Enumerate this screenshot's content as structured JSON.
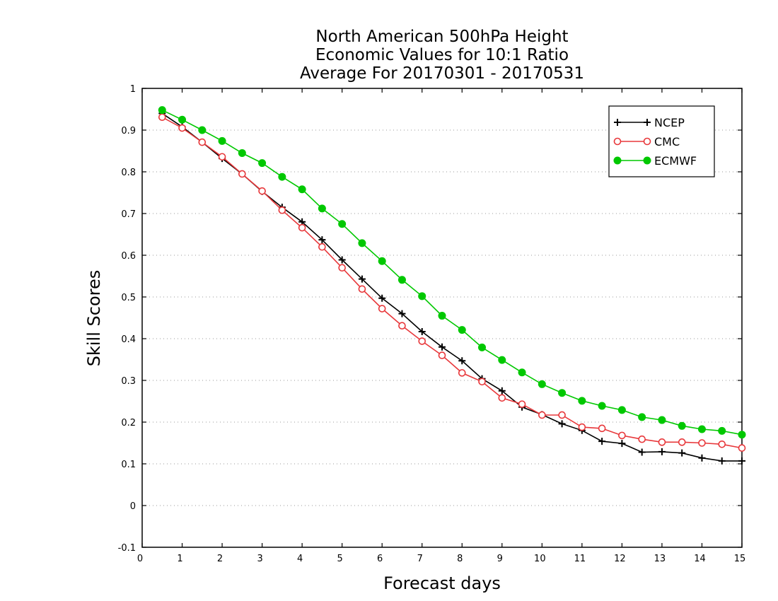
{
  "chart_data": {
    "type": "line",
    "title": [
      "North American 500hPa Height",
      "Economic Values for 10:1 Ratio",
      "Average For 20170301 - 20170531"
    ],
    "xlabel": "Forecast days",
    "ylabel": "Skill Scores",
    "xlim": [
      0,
      15
    ],
    "ylim": [
      -0.1,
      1
    ],
    "xticks": [
      0,
      1,
      2,
      3,
      4,
      5,
      6,
      7,
      8,
      9,
      10,
      11,
      12,
      13,
      14,
      15
    ],
    "xtick_labels": [
      "0",
      "1",
      "2",
      "3",
      "4",
      "5",
      "6",
      "7",
      "8",
      "9",
      "10",
      "11",
      "12",
      "13",
      "14",
      "15"
    ],
    "yticks": [
      -0.1,
      0,
      0.1,
      0.2,
      0.3,
      0.4,
      0.5,
      0.6,
      0.7,
      0.8,
      0.9,
      1
    ],
    "ytick_labels": [
      "-0.1",
      "0",
      "0.1",
      "0.2",
      "0.3",
      "0.4",
      "0.5",
      "0.6",
      "0.7",
      "0.8",
      "0.9",
      "1"
    ],
    "grid": true,
    "legend_position": "top-right",
    "x": [
      0.5,
      1,
      1.5,
      2,
      2.5,
      3,
      3.5,
      4,
      4.5,
      5,
      5.5,
      6,
      6.5,
      7,
      7.5,
      8,
      8.5,
      9,
      9.5,
      10,
      10.5,
      11,
      11.5,
      12,
      12.5,
      13,
      13.5,
      14,
      14.5,
      15
    ],
    "series": [
      {
        "name": "NCEP",
        "color": "#000000",
        "marker": "plus",
        "values": [
          0.94,
          0.908,
          0.871,
          0.832,
          0.795,
          0.753,
          0.715,
          0.68,
          0.637,
          0.589,
          0.543,
          0.497,
          0.46,
          0.417,
          0.38,
          0.347,
          0.304,
          0.275,
          0.236,
          0.218,
          0.196,
          0.18,
          0.154,
          0.149,
          0.128,
          0.129,
          0.126,
          0.114,
          0.107,
          0.107
        ]
      },
      {
        "name": "CMC",
        "color": "#e8383b",
        "marker": "open-circle",
        "values": [
          0.931,
          0.905,
          0.871,
          0.836,
          0.795,
          0.754,
          0.708,
          0.666,
          0.62,
          0.57,
          0.519,
          0.472,
          0.431,
          0.394,
          0.36,
          0.318,
          0.297,
          0.258,
          0.243,
          0.217,
          0.217,
          0.188,
          0.185,
          0.168,
          0.159,
          0.152,
          0.152,
          0.15,
          0.147,
          0.138
        ]
      },
      {
        "name": "ECMWF",
        "color": "#00c800",
        "marker": "filled-circle",
        "values": [
          0.948,
          0.925,
          0.9,
          0.874,
          0.845,
          0.821,
          0.788,
          0.758,
          0.712,
          0.675,
          0.629,
          0.586,
          0.541,
          0.502,
          0.455,
          0.421,
          0.379,
          0.349,
          0.319,
          0.291,
          0.27,
          0.251,
          0.239,
          0.229,
          0.212,
          0.205,
          0.191,
          0.183,
          0.179,
          0.17
        ]
      }
    ]
  }
}
